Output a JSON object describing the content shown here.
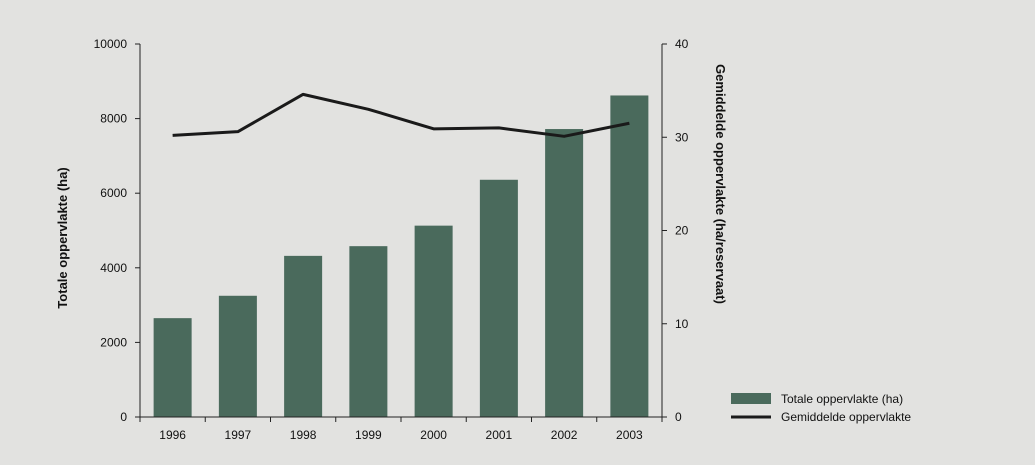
{
  "chart_data": {
    "type": "bar",
    "categories": [
      "1996",
      "1997",
      "1998",
      "1999",
      "2000",
      "2001",
      "2002",
      "2003"
    ],
    "series": [
      {
        "name": "Totale oppervlakte (ha)",
        "type": "bar",
        "axis": "left",
        "values": [
          2650,
          3250,
          4320,
          4580,
          5130,
          6360,
          7720,
          8620
        ],
        "color": "#4a6a5c"
      },
      {
        "name": "Gemiddelde oppervlakte",
        "type": "line",
        "axis": "right",
        "values": [
          30.2,
          30.6,
          34.6,
          33.0,
          30.9,
          31.0,
          30.1,
          31.5
        ],
        "color": "#1a1a1a"
      }
    ],
    "ylabel": "Totale oppervlakte (ha)",
    "y2label": "Gemiddelde oppervlakte (ha/reservaat)",
    "ylim": [
      0,
      10000
    ],
    "y2lim": [
      0,
      40
    ],
    "yticks": [
      "0",
      "2000",
      "4000",
      "6000",
      "8000",
      "10000"
    ],
    "y2ticks": [
      "0",
      "10",
      "20",
      "30",
      "40"
    ],
    "grid": false,
    "legend": "bottom-right"
  }
}
